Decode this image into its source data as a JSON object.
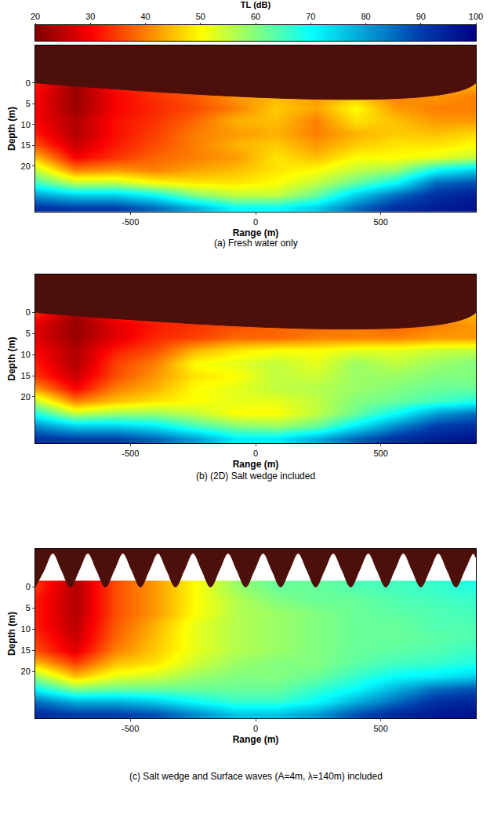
{
  "chart_data": {
    "type": "heatmap",
    "colorbar": {
      "title": "TL (dB)",
      "range": [
        20,
        100
      ],
      "ticks": [
        20,
        30,
        40,
        50,
        60,
        70,
        80,
        90,
        100
      ]
    },
    "panels": [
      {
        "caption": "(a) Fresh water only",
        "x_label": "Range (m)",
        "y_label": "Depth (m)",
        "xlim": [
          -880,
          880
        ],
        "ylim": [
          31,
          -9
        ],
        "xticks": [
          -500,
          0,
          500
        ],
        "yticks": [
          0,
          5,
          10,
          15,
          20
        ],
        "x": [
          -880,
          -720,
          -560,
          -400,
          -240,
          -80,
          80,
          240,
          400,
          560,
          720,
          880
        ],
        "depth": [
          0,
          3,
          6,
          9,
          12,
          15,
          18,
          21,
          24,
          27,
          30
        ],
        "cells": [
          [
            32,
            22,
            32,
            35,
            38,
            45,
            48,
            45,
            48,
            42,
            45,
            45
          ],
          [
            30,
            22,
            30,
            34,
            37,
            42,
            44,
            42,
            45,
            40,
            42,
            40
          ],
          [
            30,
            22,
            30,
            33,
            36,
            40,
            46,
            43,
            50,
            42,
            40,
            40
          ],
          [
            30,
            24,
            31,
            34,
            38,
            44,
            45,
            40,
            48,
            45,
            42,
            42
          ],
          [
            32,
            24,
            31,
            35,
            40,
            42,
            44,
            40,
            44,
            46,
            45,
            47
          ],
          [
            36,
            26,
            32,
            36,
            40,
            44,
            46,
            42,
            46,
            48,
            48,
            50
          ],
          [
            45,
            30,
            34,
            38,
            40,
            42,
            48,
            45,
            50,
            50,
            52,
            55
          ],
          [
            55,
            40,
            42,
            40,
            43,
            45,
            48,
            50,
            55,
            58,
            70,
            75
          ],
          [
            65,
            55,
            55,
            50,
            48,
            48,
            50,
            55,
            62,
            70,
            85,
            88
          ],
          [
            80,
            75,
            75,
            70,
            60,
            55,
            55,
            62,
            75,
            85,
            92,
            95
          ],
          [
            92,
            90,
            90,
            85,
            78,
            70,
            70,
            75,
            85,
            92,
            95,
            97
          ]
        ],
        "surface": {
          "x": [
            -880,
            880
          ],
          "depth": [
            0,
            0
          ],
          "color": "#4d0f0a"
        }
      },
      {
        "caption": "(b) (2D) Salt wedge included",
        "x_label": "Range (m)",
        "y_label": "Depth (m)",
        "xlim": [
          -880,
          880
        ],
        "ylim": [
          31,
          -9
        ],
        "xticks": [
          -500,
          0,
          500
        ],
        "yticks": [
          0,
          5,
          10,
          15,
          20
        ],
        "x": [
          -880,
          -720,
          -560,
          -400,
          -240,
          -80,
          80,
          240,
          400,
          560,
          720,
          880
        ],
        "depth": [
          0,
          3,
          6,
          9,
          12,
          15,
          18,
          21,
          24,
          27,
          30
        ],
        "cells": [
          [
            34,
            22,
            33,
            36,
            38,
            40,
            42,
            42,
            44,
            42,
            44,
            45
          ],
          [
            28,
            22,
            28,
            32,
            34,
            36,
            38,
            38,
            40,
            38,
            40,
            42
          ],
          [
            28,
            22,
            28,
            33,
            35,
            38,
            38,
            40,
            40,
            40,
            42,
            42
          ],
          [
            30,
            24,
            32,
            36,
            44,
            48,
            50,
            50,
            52,
            52,
            54,
            55
          ],
          [
            32,
            24,
            35,
            40,
            50,
            52,
            55,
            52,
            58,
            55,
            58,
            60
          ],
          [
            34,
            26,
            36,
            42,
            48,
            50,
            55,
            54,
            58,
            58,
            60,
            60
          ],
          [
            42,
            30,
            40,
            44,
            50,
            52,
            55,
            56,
            58,
            60,
            62,
            62
          ],
          [
            55,
            40,
            45,
            48,
            50,
            52,
            52,
            55,
            60,
            62,
            65,
            68
          ],
          [
            68,
            55,
            58,
            58,
            55,
            50,
            50,
            55,
            62,
            70,
            80,
            85
          ],
          [
            82,
            75,
            75,
            72,
            65,
            60,
            58,
            62,
            72,
            82,
            90,
            92
          ],
          [
            92,
            90,
            90,
            86,
            80,
            72,
            72,
            78,
            86,
            92,
            95,
            97
          ]
        ],
        "surface": {
          "x": [
            -880,
            880
          ],
          "depth": [
            0,
            0
          ],
          "color": "#4d0f0a"
        }
      },
      {
        "caption": "(c) Salt wedge and Surface waves (A=4m, λ=140m) included",
        "x_label": "Range (m)",
        "y_label": "Depth (m)",
        "xlim": [
          -880,
          880
        ],
        "ylim": [
          31,
          -9
        ],
        "xticks": [
          -500,
          0,
          500
        ],
        "yticks": [
          0,
          5,
          10,
          15,
          20
        ],
        "x": [
          -880,
          -720,
          -560,
          -400,
          -240,
          -80,
          80,
          240,
          400,
          560,
          720,
          880
        ],
        "depth": [
          0,
          3,
          6,
          9,
          12,
          15,
          18,
          21,
          24,
          27,
          30
        ],
        "cells": [
          [
            34,
            24,
            36,
            42,
            50,
            58,
            62,
            62,
            64,
            65,
            66,
            68
          ],
          [
            32,
            24,
            36,
            42,
            50,
            56,
            60,
            62,
            62,
            64,
            65,
            66
          ],
          [
            32,
            24,
            36,
            42,
            50,
            56,
            58,
            60,
            62,
            63,
            64,
            65
          ],
          [
            32,
            25,
            37,
            44,
            52,
            56,
            58,
            60,
            62,
            62,
            64,
            64
          ],
          [
            34,
            26,
            38,
            45,
            52,
            56,
            58,
            60,
            62,
            62,
            63,
            64
          ],
          [
            36,
            28,
            40,
            46,
            52,
            56,
            58,
            60,
            62,
            63,
            64,
            66
          ],
          [
            45,
            35,
            45,
            48,
            54,
            58,
            60,
            60,
            63,
            65,
            66,
            68
          ],
          [
            58,
            45,
            52,
            54,
            58,
            60,
            60,
            62,
            66,
            70,
            72,
            75
          ],
          [
            70,
            60,
            62,
            62,
            62,
            62,
            62,
            66,
            70,
            78,
            85,
            88
          ],
          [
            85,
            78,
            78,
            75,
            70,
            66,
            66,
            70,
            78,
            85,
            92,
            94
          ],
          [
            93,
            90,
            90,
            88,
            82,
            76,
            76,
            80,
            88,
            93,
            96,
            97
          ]
        ],
        "surface": {
          "x": [
            -880,
            -845,
            -810,
            -775,
            -740,
            -705,
            -670,
            -635,
            -600,
            -565,
            -530,
            -495,
            -460,
            -425,
            -390,
            -355,
            -320,
            -285,
            -250,
            -215,
            -180,
            -145,
            -110,
            -75,
            -40,
            -5,
            30,
            65,
            100,
            135,
            170,
            205,
            240,
            275,
            310,
            345,
            380,
            415,
            450,
            485,
            520,
            555,
            590,
            625,
            660,
            695,
            730,
            765,
            800,
            835,
            870,
            880
          ],
          "depth": [
            0,
            -4,
            -8,
            -4,
            0,
            -4,
            -8,
            -4,
            0,
            -4,
            -8,
            -4,
            0,
            -4,
            -8,
            -4,
            0,
            -4,
            -8,
            -4,
            0,
            -4,
            -8,
            -4,
            0,
            -4,
            -8,
            -4,
            0,
            -4,
            -8,
            -4,
            0,
            -4,
            -8,
            -4,
            0,
            -4,
            -8,
            -4,
            0,
            -4,
            -8,
            -4,
            0,
            -4,
            -8,
            -4,
            0,
            -4,
            -8,
            -7
          ],
          "color": "#4d0f0a"
        }
      }
    ]
  }
}
